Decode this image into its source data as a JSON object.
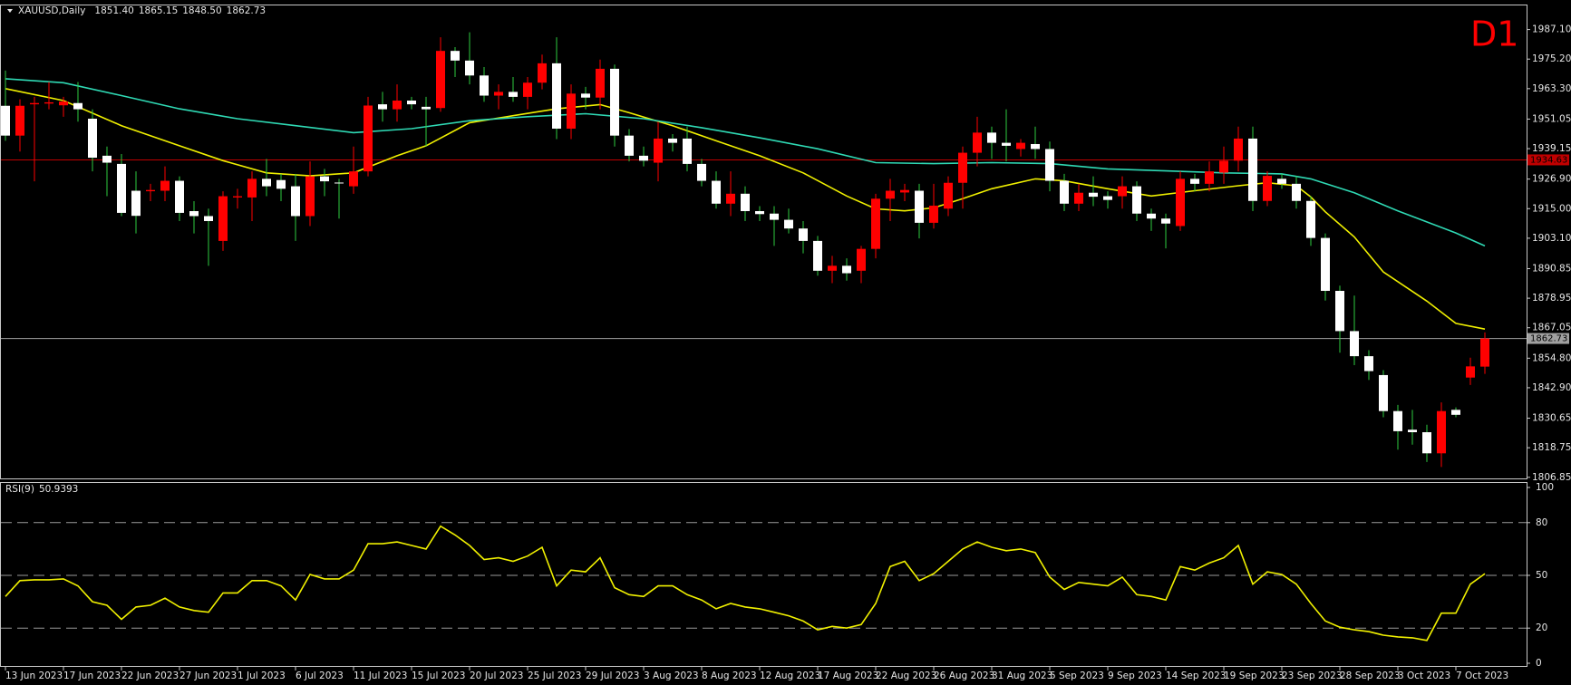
{
  "chart_data": [
    {
      "type": "candlestick",
      "title": "XAUUSD,Daily",
      "header_values": [
        "1851.40",
        "1865.15",
        "1848.50",
        "1862.73"
      ],
      "annotation": "D1",
      "up_color": "#ff0000",
      "down_color": "#ffffff",
      "categories": [
        "13 Jun 2023",
        null,
        null,
        null,
        "17 Jun 2023",
        null,
        null,
        null,
        "22 Jun 2023",
        null,
        null,
        null,
        "27 Jun 2023",
        null,
        null,
        null,
        "1 Jul 2023",
        null,
        null,
        null,
        "6 Jul 2023",
        null,
        null,
        null,
        "11 Jul 2023",
        null,
        null,
        null,
        "15 Jul 2023",
        null,
        null,
        null,
        "20 Jul 2023",
        null,
        null,
        null,
        "25 Jul 2023",
        null,
        null,
        null,
        "29 Jul 2023",
        null,
        null,
        null,
        "3 Aug 2023",
        null,
        null,
        null,
        "8 Aug 2023",
        null,
        null,
        null,
        "12 Aug 2023",
        null,
        null,
        null,
        "17 Aug 2023",
        null,
        null,
        null,
        "22 Aug 2023",
        null,
        null,
        null,
        "26 Aug 2023",
        null,
        null,
        null,
        "31 Aug 2023",
        null,
        null,
        null,
        "5 Sep 2023",
        null,
        null,
        null,
        "9 Sep 2023",
        null,
        null,
        null,
        "14 Sep 2023",
        null,
        null,
        null,
        "19 Sep 2023",
        null,
        null,
        null,
        "23 Sep 2023",
        null,
        null,
        null,
        "28 Sep 2023",
        null,
        null,
        null,
        "3 Oct 2023",
        null,
        null,
        null,
        "7 Oct 2023",
        null,
        null
      ],
      "open": [
        1956.4,
        1944.4,
        1957,
        1957.3,
        1956.6,
        1957.5,
        1951.2,
        1936.3,
        1933,
        1922.2,
        1922,
        1922.2,
        1926.2,
        1914,
        1912,
        1902,
        1919.5,
        1919.5,
        1927,
        1926.5,
        1924,
        1912,
        1928,
        1925.5,
        1924,
        1930,
        1957,
        1955,
        1958.5,
        1956,
        1955.5,
        1978.5,
        1974.6,
        1968.6,
        1960.5,
        1962,
        1960,
        1965.7,
        1973.5,
        1947.2,
        1961.3,
        1959.7,
        1971.3,
        1944.4,
        1936.3,
        1933.5,
        1943.2,
        1943.2,
        1933,
        1926.2,
        1917,
        1921,
        1914,
        1913,
        1910.5,
        1907,
        1902,
        1890,
        1892,
        1890,
        1898.8,
        1919,
        1921.5,
        1922.2,
        1909.3,
        1915,
        1925.4,
        1937.5,
        1945.6,
        1941.5,
        1939,
        1941,
        1939,
        1926.2,
        1917,
        1921.4,
        1920,
        1920,
        1924,
        1913,
        1911,
        1908,
        1927,
        1925,
        1929.5,
        1934.3,
        1943.2,
        1918.1,
        1927,
        1925,
        1918.1,
        1903.2,
        1881.9,
        1865.7,
        1855.6,
        1848,
        1833.5,
        1826,
        1825,
        1816.5,
        1834,
        1847,
        1851.4
      ],
      "high": [
        1970.6,
        1959,
        1960,
        1966,
        1960,
        1966,
        1955,
        1940,
        1937,
        1930,
        1925,
        1932,
        1928,
        1918,
        1915,
        1922,
        1923,
        1930,
        1935,
        1929,
        1929,
        1934,
        1931,
        1927,
        1940,
        1960,
        1962,
        1965,
        1960,
        1960,
        1984,
        1980,
        1986,
        1972,
        1965,
        1968,
        1968,
        1977,
        1984,
        1965,
        1964,
        1975,
        1973,
        1947,
        1940,
        1950,
        1945,
        1948,
        1935,
        1930,
        1930,
        1924,
        1916,
        1916,
        1915,
        1910,
        1904,
        1896,
        1895,
        1900,
        1921,
        1927,
        1925,
        1925,
        1925,
        1928,
        1940,
        1952,
        1948,
        1955,
        1943,
        1948,
        1942,
        1929,
        1925,
        1928,
        1922,
        1928,
        1926,
        1915,
        1913,
        1930,
        1929,
        1934,
        1940,
        1948,
        1948,
        1930,
        1929,
        1928,
        1920,
        1905,
        1884,
        1880,
        1858,
        1850,
        1836,
        1834,
        1828,
        1837,
        1835,
        1855,
        1865.15
      ],
      "low": [
        1942.3,
        1938,
        1926,
        1955,
        1952,
        1950,
        1930,
        1920,
        1912,
        1905,
        1918,
        1918,
        1910,
        1905,
        1892,
        1898,
        1915,
        1910,
        1920,
        1918,
        1902,
        1908,
        1920,
        1911,
        1921,
        1928,
        1950,
        1950,
        1955,
        1940,
        1954,
        1968,
        1965,
        1958,
        1955,
        1958,
        1955,
        1963,
        1943,
        1943,
        1955,
        1955,
        1940,
        1934,
        1932,
        1926,
        1938,
        1930,
        1924,
        1915,
        1912,
        1910,
        1910,
        1900,
        1905,
        1897,
        1888,
        1885,
        1886,
        1885,
        1895,
        1910,
        1918,
        1903,
        1907,
        1912,
        1915,
        1932,
        1935,
        1934,
        1936,
        1935,
        1922,
        1914,
        1914,
        1916,
        1915,
        1915,
        1910,
        1906,
        1899,
        1906,
        1922,
        1922,
        1925,
        1930,
        1914,
        1916,
        1923,
        1915,
        1900,
        1878,
        1857,
        1852,
        1846,
        1831,
        1818,
        1820,
        1813,
        1811,
        1831,
        1844,
        1848.5
      ],
      "close": [
        1944.4,
        1956.4,
        1957.5,
        1957.8,
        1958.1,
        1955,
        1935.5,
        1933.5,
        1913.3,
        1912.1,
        1922.5,
        1926.2,
        1913.3,
        1912,
        1910,
        1920,
        1920,
        1927,
        1924,
        1923,
        1912,
        1928,
        1926,
        1925.3,
        1930,
        1956.5,
        1955,
        1958.5,
        1957,
        1955,
        1978.5,
        1974.6,
        1968.6,
        1960.5,
        1962,
        1960,
        1965.7,
        1973.5,
        1947.2,
        1961.3,
        1959.7,
        1971.3,
        1944.4,
        1936.3,
        1934.3,
        1943.2,
        1941.5,
        1933,
        1926.2,
        1917,
        1921,
        1914,
        1912.8,
        1910.5,
        1907,
        1902,
        1890,
        1892,
        1889,
        1898.8,
        1919,
        1922.2,
        1922.5,
        1909.3,
        1916.2,
        1925.4,
        1937.5,
        1945.6,
        1941.5,
        1940.3,
        1941.5,
        1939,
        1926.2,
        1917,
        1921.4,
        1919.8,
        1918.5,
        1924,
        1913,
        1911,
        1909,
        1927,
        1925,
        1930,
        1934.3,
        1943.2,
        1918.1,
        1928.2,
        1925,
        1918.1,
        1903.2,
        1881.9,
        1865.7,
        1855.6,
        1849.6,
        1833.5,
        1825.4,
        1825,
        1816.5,
        1833.5,
        1832,
        1851.5,
        1862.73
      ],
      "ma": [
        {
          "color": "#f0f000",
          "x": [
            0,
            4,
            8,
            12,
            15,
            18,
            21,
            24,
            27,
            29,
            32,
            35,
            38,
            41,
            43,
            46,
            49,
            52,
            55,
            58,
            60,
            62,
            64,
            66,
            68,
            71,
            73,
            76,
            79,
            82,
            85,
            87,
            89,
            90,
            91,
            93,
            95,
            98,
            100,
            102
          ],
          "values": [
            1963.3,
            1958.5,
            1948.4,
            1940.3,
            1934.3,
            1929.4,
            1928.2,
            1929.4,
            1936.3,
            1940.3,
            1949.6,
            1952.4,
            1955.2,
            1956.9,
            1953.6,
            1948.4,
            1942.3,
            1936.3,
            1929.4,
            1920.1,
            1914.9,
            1914.1,
            1915.3,
            1919,
            1923,
            1927,
            1926.2,
            1923,
            1920.1,
            1922.2,
            1924.2,
            1925.4,
            1924.2,
            1919.7,
            1913.7,
            1903.6,
            1889.5,
            1877.8,
            1868.8,
            1866.5
          ]
        },
        {
          "color": "#2fd9b4",
          "x": [
            0,
            4,
            8,
            12,
            16,
            20,
            24,
            28,
            32,
            36,
            40,
            44,
            48,
            52,
            56,
            60,
            64,
            68,
            72,
            76,
            80,
            84,
            88,
            90,
            93,
            96,
            100,
            102
          ],
          "values": [
            1967.3,
            1965.7,
            1960.5,
            1955.2,
            1951.2,
            1948.4,
            1945.6,
            1947.2,
            1950.4,
            1952,
            1953.2,
            1951.2,
            1947.6,
            1943.5,
            1939.1,
            1933.5,
            1933.1,
            1933.5,
            1933.1,
            1931,
            1930.2,
            1929.4,
            1929,
            1927,
            1921.4,
            1914.1,
            1905.2,
            1900
          ]
        }
      ],
      "hlines": [
        {
          "value": 1934.63,
          "color": "#c00000"
        },
        {
          "value": 1862.73,
          "color": "#a0a0a0"
        }
      ],
      "ylim": [
        1806.4,
        1996.8
      ],
      "yticks": [
        {
          "value": 1987.1,
          "label": "1987.10"
        },
        {
          "value": 1975.2,
          "label": "1975.20"
        },
        {
          "value": 1963.3,
          "label": "1963.30"
        },
        {
          "value": 1951.05,
          "label": "1951.05"
        },
        {
          "value": 1939.15,
          "label": "1939.15"
        },
        {
          "value": 1926.9,
          "label": "1926.90"
        },
        {
          "value": 1915,
          "label": "1915.00"
        },
        {
          "value": 1903.1,
          "label": "1903.10"
        },
        {
          "value": 1890.85,
          "label": "1890.85"
        },
        {
          "value": 1878.95,
          "label": "1878.95"
        },
        {
          "value": 1867.05,
          "label": "1867.05"
        },
        {
          "value": 1854.8,
          "label": "1854.80"
        },
        {
          "value": 1842.9,
          "label": "1842.90"
        },
        {
          "value": 1830.65,
          "label": "1830.65"
        },
        {
          "value": 1818.75,
          "label": "1818.75"
        },
        {
          "value": 1806.85,
          "label": "1806.85"
        }
      ]
    },
    {
      "type": "line",
      "title": "RSI(9)",
      "color": "#f0f000",
      "values": [
        38,
        47,
        47.5,
        47.5,
        48,
        44,
        35,
        33,
        25,
        32,
        33,
        37,
        32,
        30,
        29,
        40,
        40,
        47,
        47,
        44,
        36,
        50.5,
        48,
        48,
        53,
        68,
        68,
        69,
        67,
        65,
        78,
        73,
        67,
        59,
        60,
        58,
        61,
        66,
        44,
        53,
        52,
        60,
        43,
        39,
        38,
        44,
        44,
        39,
        36,
        31,
        34,
        32,
        31,
        29,
        27,
        24,
        19,
        21,
        20,
        22,
        34,
        55,
        58,
        47,
        51,
        58,
        65,
        69,
        66,
        64,
        65,
        63,
        49,
        42,
        46,
        45,
        44,
        49,
        39,
        38,
        36,
        55,
        53,
        57,
        60,
        67,
        45,
        52,
        50.5,
        45,
        34,
        24,
        20.5,
        19,
        18,
        16,
        15,
        14.5,
        13,
        28.5,
        28.5,
        45,
        50.9393
      ],
      "ylim": [
        0,
        100
      ],
      "yticks": [
        100,
        80,
        50,
        20,
        0
      ],
      "levels": [
        80,
        50,
        20
      ]
    }
  ]
}
